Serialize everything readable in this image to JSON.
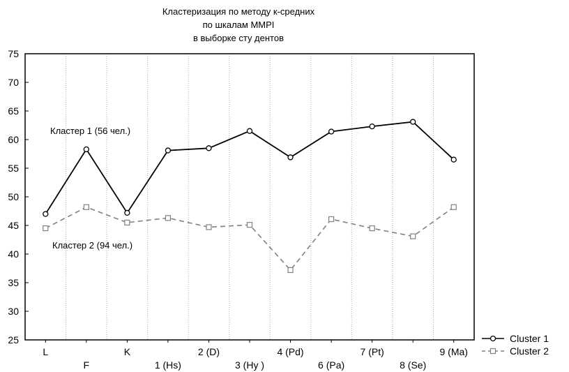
{
  "chart_data": {
    "type": "line",
    "title": [
      "Кластеризация по методу  к-средних",
      "по шкалам MMPI",
      "в выборке сту дентов"
    ],
    "xlabel": "",
    "ylabel": "",
    "ylim": [
      25,
      75
    ],
    "yticks": [
      25,
      30,
      35,
      40,
      45,
      50,
      55,
      60,
      65,
      70,
      75
    ],
    "categories": [
      "L",
      "F",
      "K",
      "1 (Hs)",
      "2 (D)",
      "3 (Hy )",
      "4 (Pd)",
      "6 (Pa)",
      "7 (Pt)",
      "8 (Se)",
      "9 (Ma)"
    ],
    "grid": "vertical dotted",
    "legend_position": "bottom-right outside",
    "series": [
      {
        "name": "Cluster  1",
        "line": "solid",
        "marker": "circle",
        "color": "#000000",
        "values": [
          47.0,
          58.3,
          47.2,
          58.1,
          58.5,
          61.5,
          56.9,
          61.4,
          62.3,
          63.1,
          56.5
        ]
      },
      {
        "name": "Cluster  2",
        "line": "dashed",
        "marker": "square",
        "color": "#808080",
        "values": [
          44.5,
          48.2,
          45.5,
          46.3,
          44.7,
          45.1,
          37.2,
          46.1,
          44.5,
          43.1,
          48.2
        ]
      }
    ],
    "annotations": [
      "Кластер 1 (56 чел.)",
      "Кластер 2 (94 чел.)"
    ]
  }
}
